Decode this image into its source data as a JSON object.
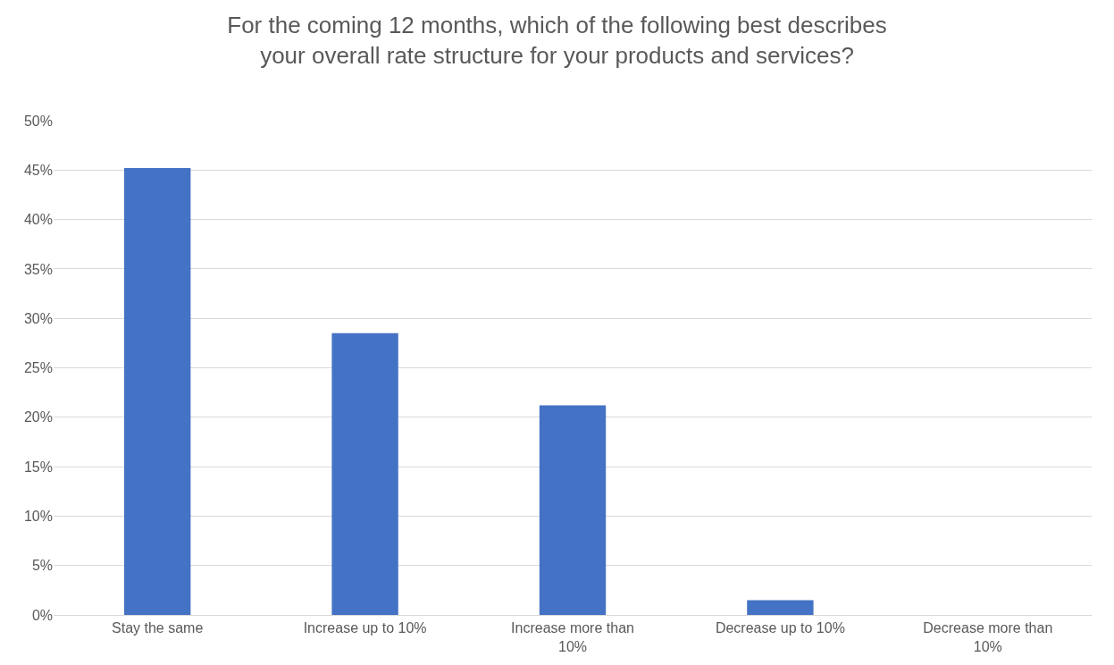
{
  "chart_data": {
    "type": "bar",
    "title": "For the coming 12 months, which of the following best describes your overall rate structure for your products and services?",
    "categories": [
      "Stay the same",
      "Increase up to 10%",
      "Increase more than 10%",
      "Decrease up to 10%",
      "Decrease more than 10%"
    ],
    "values": [
      45.2,
      28.5,
      21.2,
      1.5,
      0
    ],
    "color": "#4472c4",
    "ylim": [
      0,
      50
    ],
    "yticks": [
      {
        "value": 0,
        "label": "0%"
      },
      {
        "value": 5,
        "label": "5%"
      },
      {
        "value": 10,
        "label": "10%"
      },
      {
        "value": 15,
        "label": "15%"
      },
      {
        "value": 20,
        "label": "20%"
      },
      {
        "value": 25,
        "label": "25%"
      },
      {
        "value": 30,
        "label": "30%"
      },
      {
        "value": 35,
        "label": "35%"
      },
      {
        "value": 40,
        "label": "40%"
      },
      {
        "value": 45,
        "label": "45%"
      },
      {
        "value": 50,
        "label": "50%"
      }
    ],
    "grid": "y"
  }
}
